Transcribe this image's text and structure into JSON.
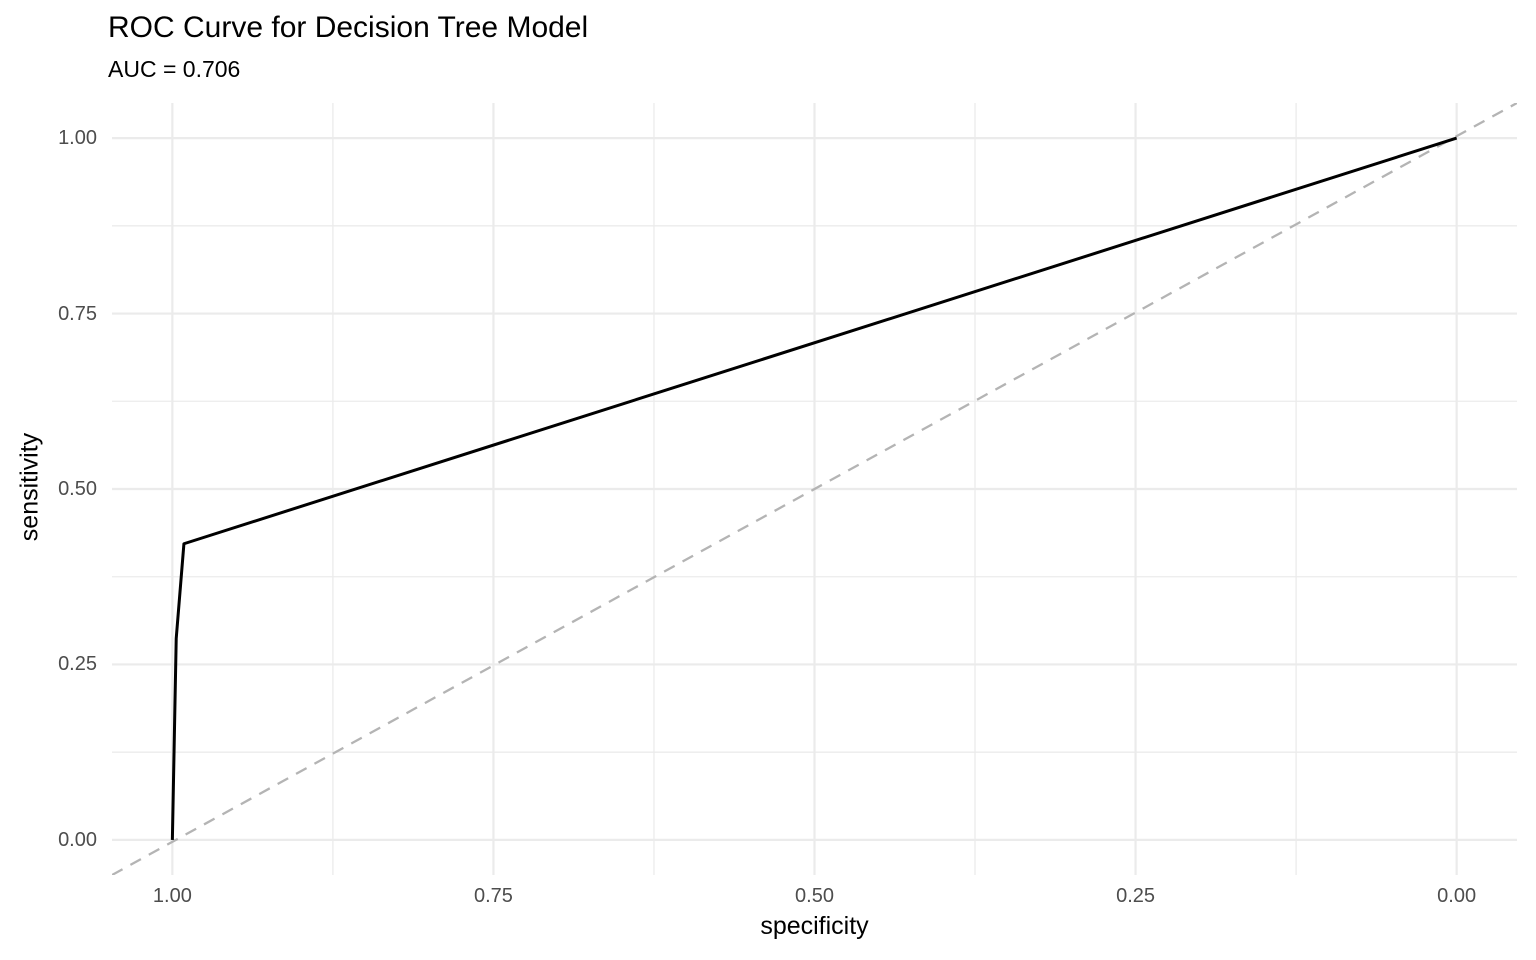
{
  "chart_data": {
    "type": "line",
    "title": "ROC Curve for Decision Tree Model",
    "subtitle": "AUC = 0.706",
    "auc": 0.706,
    "xlabel": "specificity",
    "ylabel": "sensitivity",
    "x_axis": {
      "label": "specificity",
      "reversed": true,
      "range": [
        0.0,
        1.0
      ],
      "major_ticks": [
        1.0,
        0.75,
        0.5,
        0.25,
        0.0
      ],
      "tick_labels": [
        "1.00",
        "0.75",
        "0.50",
        "0.25",
        "0.00"
      ],
      "minor_ticks": [
        0.875,
        0.625,
        0.375,
        0.125
      ]
    },
    "y_axis": {
      "label": "sensitivity",
      "reversed": false,
      "range": [
        0.0,
        1.0
      ],
      "major_ticks": [
        1.0,
        0.75,
        0.5,
        0.25,
        0.0
      ],
      "tick_labels": [
        "1.00",
        "0.75",
        "0.50",
        "0.25",
        "0.00"
      ],
      "minor_ticks": [
        0.875,
        0.625,
        0.375,
        0.125
      ]
    },
    "grid": "on",
    "legend": "none",
    "series": [
      {
        "name": "roc-curve",
        "style": "solid",
        "color": "#000000",
        "points": [
          {
            "specificity": 1.0,
            "sensitivity": 0.0
          },
          {
            "specificity": 0.997,
            "sensitivity": 0.287
          },
          {
            "specificity": 0.991,
            "sensitivity": 0.422
          },
          {
            "specificity": 0.0,
            "sensitivity": 1.0
          }
        ]
      },
      {
        "name": "chance-diagonal",
        "style": "dashed",
        "color": "#b4b4b4",
        "points": [
          {
            "specificity": 1.0,
            "sensitivity": 0.0
          },
          {
            "specificity": 0.0,
            "sensitivity": 1.0
          }
        ]
      }
    ],
    "colors": {
      "background": "#ffffff",
      "grid_line": "#ebebeb",
      "tick_label": "#4d4d4d",
      "text": "#000000",
      "roc_line": "#000000",
      "diagonal_line": "#b4b4b4"
    }
  }
}
